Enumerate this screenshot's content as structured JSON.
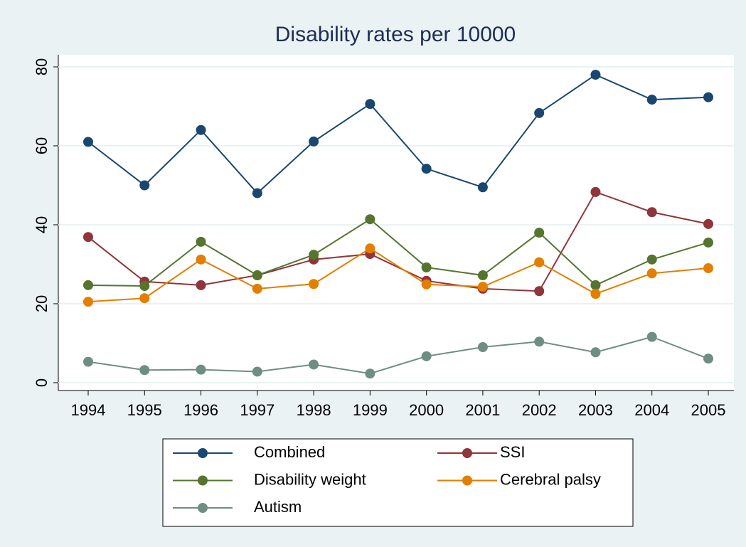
{
  "chart_data": {
    "type": "line",
    "title": "Disability rates per 10000",
    "categories": [
      "1994",
      "1995",
      "1996",
      "1997",
      "1998",
      "1999",
      "2000",
      "2001",
      "2002",
      "2003",
      "2004",
      "2005"
    ],
    "series": [
      {
        "name": "Combined",
        "color": "#1a476f",
        "values": [
          61,
          50,
          64,
          48,
          61.1,
          70.6,
          54.2,
          49.5,
          68.3,
          78,
          71.7,
          72.3
        ]
      },
      {
        "name": "SSI",
        "color": "#90353b",
        "values": [
          36.9,
          25.6,
          24.7,
          27.2,
          31.2,
          32.6,
          25.8,
          23.8,
          23.2,
          48.3,
          43.2,
          40.2
        ]
      },
      {
        "name": "Disability weight",
        "color": "#55752f",
        "values": [
          24.7,
          24.5,
          35.7,
          27.2,
          32.4,
          41.4,
          29.2,
          27.2,
          38,
          24.7,
          31.2,
          35.5
        ]
      },
      {
        "name": "Cerebral palsy",
        "color": "#e37e00",
        "values": [
          20.5,
          21.4,
          31.2,
          23.8,
          25,
          34,
          24.9,
          24.3,
          30.5,
          22.5,
          27.7,
          29
        ]
      },
      {
        "name": "Autism",
        "color": "#6e8e84",
        "values": [
          5.3,
          3.2,
          3.3,
          2.8,
          4.6,
          2.3,
          6.7,
          9,
          10.4,
          7.7,
          11.6,
          6.1
        ]
      }
    ],
    "ylim": [
      0,
      80
    ],
    "yticks": [
      0,
      20,
      40,
      60,
      80
    ],
    "grid": true
  }
}
